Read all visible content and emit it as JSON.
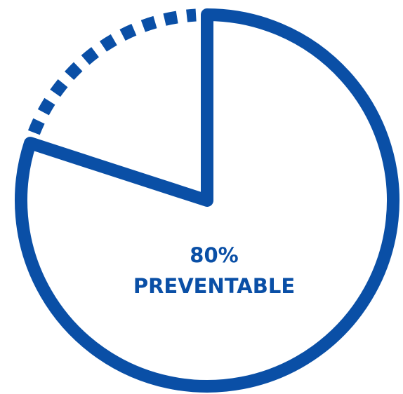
{
  "chart_data": {
    "type": "pie",
    "categories": [
      "PREVENTABLE",
      null
    ],
    "values": [
      80,
      20
    ],
    "value_labels": [
      "80%",
      null
    ],
    "color": "#0a4fa6",
    "styles": [
      "solid",
      "dotted"
    ]
  }
}
